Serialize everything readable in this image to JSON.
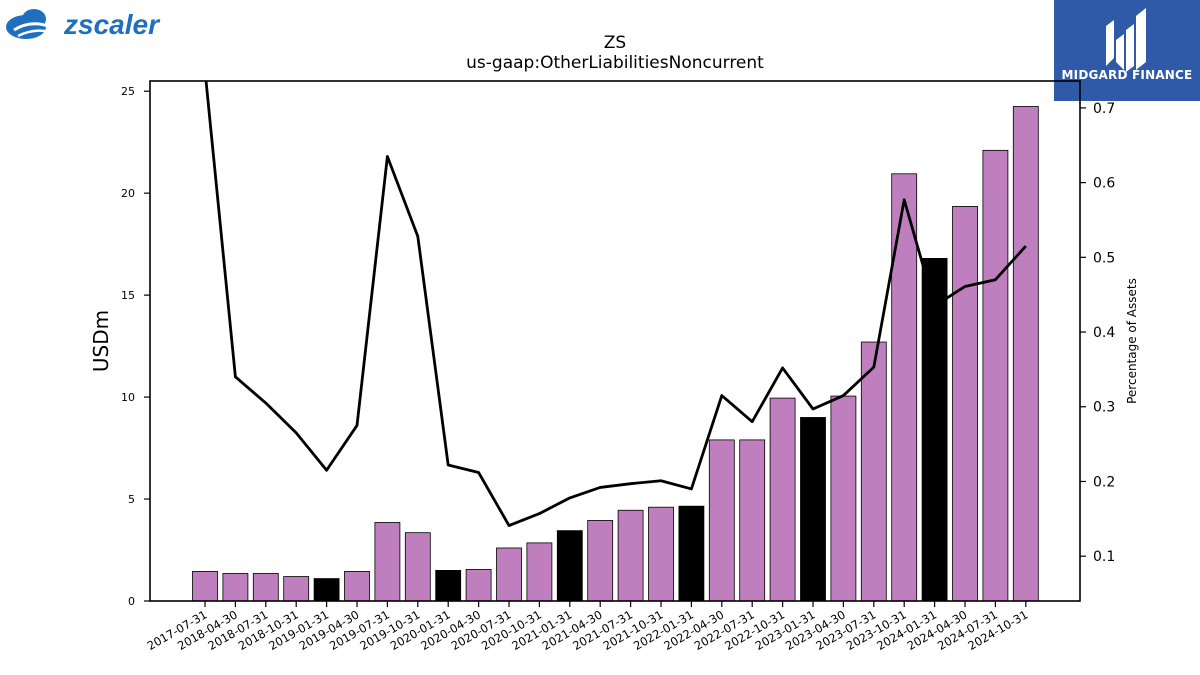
{
  "logos": {
    "left_brand": "zscaler",
    "left_brand_color": "#1f6fc1",
    "right_brand": "MIDGARD FINANCE",
    "right_brand_bg": "#2f5aa8"
  },
  "chart_data": {
    "type": "bar",
    "title": "ZS",
    "subtitle": "us-gaap:OtherLiabilitiesNoncurrent",
    "ylabel": "USDm",
    "y2label": "Percentage of Assets",
    "ylim": [
      0,
      25.5
    ],
    "y2lim": [
      0.04,
      0.736
    ],
    "yticks": [
      0,
      5,
      10,
      15,
      20,
      25
    ],
    "y2ticks": [
      0.1,
      0.2,
      0.3,
      0.4,
      0.5,
      0.6,
      0.7
    ],
    "categories": [
      "2017-07-31",
      "2018-04-30",
      "2018-07-31",
      "2018-10-31",
      "2019-01-31",
      "2019-04-30",
      "2019-07-31",
      "2019-10-31",
      "2020-01-31",
      "2020-04-30",
      "2020-07-31",
      "2020-10-31",
      "2021-01-31",
      "2021-04-30",
      "2021-07-31",
      "2021-10-31",
      "2022-01-31",
      "2022-04-30",
      "2022-07-31",
      "2022-10-31",
      "2023-01-31",
      "2023-04-30",
      "2023-07-31",
      "2023-10-31",
      "2024-01-31",
      "2024-04-30",
      "2024-07-31",
      "2024-10-31"
    ],
    "bar_colors": {
      "default": "#bf7fbf",
      "highlight": "#000000"
    },
    "series": [
      {
        "kind": "bar",
        "values": [
          1.45,
          1.35,
          1.35,
          1.2,
          1.1,
          1.45,
          3.85,
          3.35,
          1.5,
          1.55,
          2.6,
          2.85,
          3.45,
          3.95,
          4.45,
          4.6,
          4.65,
          7.9,
          7.9,
          9.95,
          9.0,
          10.05,
          12.7,
          20.95,
          16.8,
          19.35,
          22.1,
          24.25
        ],
        "highlight": [
          false,
          false,
          false,
          false,
          true,
          false,
          false,
          false,
          true,
          false,
          false,
          false,
          true,
          false,
          false,
          false,
          true,
          false,
          false,
          false,
          true,
          false,
          false,
          false,
          true,
          false,
          false,
          false
        ]
      },
      {
        "kind": "line",
        "axis": "right",
        "color": "#000000",
        "values": [
          0.75,
          0.34,
          0.305,
          0.265,
          0.215,
          0.275,
          0.635,
          0.528,
          0.222,
          0.212,
          0.141,
          0.157,
          0.178,
          0.192,
          0.197,
          0.201,
          0.19,
          0.315,
          0.28,
          0.352,
          0.297,
          0.315,
          0.353,
          0.577,
          0.435,
          0.461,
          0.47,
          0.515
        ]
      }
    ]
  }
}
